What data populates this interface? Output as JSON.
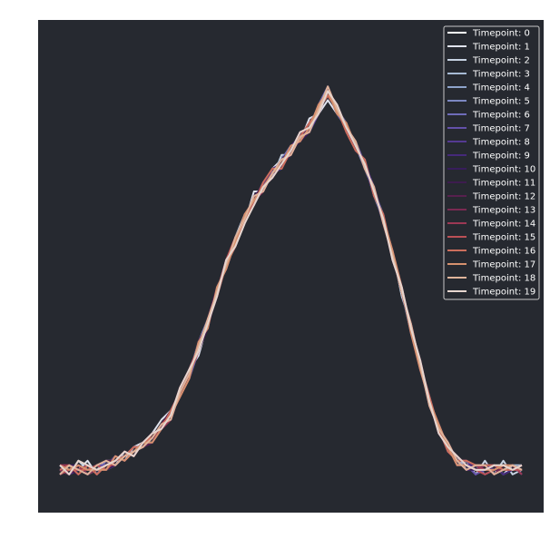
{
  "chart_data": {
    "type": "line",
    "title": "",
    "xlabel": "",
    "ylabel": "",
    "xlim": [
      0,
      100
    ],
    "ylim": [
      0,
      100
    ],
    "grid": false,
    "axis_ticks_visible": false,
    "background_color": "#262930",
    "legend_placement": "top-right",
    "x": [
      0,
      2,
      4,
      6,
      8,
      10,
      12,
      14,
      16,
      18,
      20,
      22,
      24,
      26,
      28,
      30,
      32,
      34,
      36,
      38,
      40,
      42,
      44,
      46,
      48,
      50,
      52,
      54,
      56,
      58,
      60,
      62,
      64,
      66,
      68,
      70,
      72,
      74,
      76,
      78,
      80,
      82,
      84,
      86,
      88,
      90,
      92,
      94,
      96,
      98,
      100
    ],
    "series": [
      {
        "name": "Timepoint: 0",
        "color": "#ffffff",
        "values": [
          6,
          5,
          6,
          4,
          5,
          6,
          7,
          8,
          9,
          10,
          12,
          14,
          17,
          22,
          26,
          32,
          38,
          44,
          50,
          55,
          60,
          64,
          67,
          70,
          72,
          75,
          78,
          80,
          84,
          88,
          84,
          80,
          76,
          72,
          66,
          60,
          52,
          44,
          36,
          28,
          20,
          14,
          10,
          7,
          6,
          5,
          6,
          5,
          6,
          5,
          6
        ]
      },
      {
        "name": "Timepoint: 1",
        "color": "#e0e3ee",
        "values": [
          4,
          6,
          5,
          7,
          4,
          6,
          8,
          7,
          10,
          11,
          13,
          16,
          18,
          21,
          27,
          30,
          37,
          43,
          51,
          54,
          59,
          66,
          66,
          71,
          73,
          76,
          77,
          82,
          83,
          86,
          83,
          81,
          75,
          73,
          65,
          61,
          51,
          45,
          35,
          29,
          19,
          15,
          9,
          8,
          5,
          6,
          5,
          6,
          4,
          6,
          5
        ]
      },
      {
        "name": "Timepoint: 2",
        "color": "#c6d2e2",
        "values": [
          5,
          4,
          7,
          5,
          6,
          5,
          6,
          9,
          8,
          11,
          11,
          15,
          16,
          23,
          25,
          33,
          36,
          45,
          49,
          56,
          61,
          63,
          68,
          69,
          74,
          74,
          79,
          79,
          85,
          87,
          85,
          79,
          77,
          71,
          67,
          59,
          53,
          43,
          37,
          27,
          21,
          13,
          11,
          6,
          7,
          4,
          7,
          4,
          7,
          4,
          5
        ]
      },
      {
        "name": "Timepoint: 3",
        "color": "#a7bbd5",
        "values": [
          6,
          5,
          5,
          6,
          5,
          7,
          7,
          8,
          9,
          10,
          12,
          14,
          17,
          22,
          26,
          31,
          38,
          44,
          50,
          54,
          60,
          64,
          67,
          70,
          72,
          75,
          78,
          80,
          83,
          88,
          84,
          80,
          76,
          72,
          66,
          60,
          52,
          44,
          36,
          28,
          20,
          14,
          10,
          7,
          6,
          5,
          5,
          6,
          5,
          6,
          6
        ]
      },
      {
        "name": "Timepoint: 4",
        "color": "#8ea3cb",
        "values": [
          5,
          6,
          4,
          6,
          5,
          6,
          7,
          8,
          10,
          10,
          13,
          14,
          18,
          22,
          27,
          32,
          37,
          44,
          51,
          55,
          59,
          64,
          68,
          70,
          71,
          75,
          79,
          80,
          83,
          88,
          83,
          80,
          77,
          72,
          65,
          60,
          53,
          44,
          35,
          28,
          21,
          14,
          9,
          7,
          7,
          5,
          5,
          6,
          5,
          5,
          5
        ]
      },
      {
        "name": "Timepoint: 5",
        "color": "#7d88c2",
        "values": [
          4,
          5,
          6,
          5,
          6,
          5,
          8,
          7,
          9,
          11,
          12,
          15,
          17,
          21,
          26,
          33,
          38,
          43,
          50,
          56,
          60,
          63,
          67,
          71,
          72,
          74,
          78,
          81,
          84,
          87,
          84,
          81,
          76,
          71,
          66,
          61,
          52,
          45,
          36,
          27,
          20,
          15,
          10,
          6,
          6,
          6,
          4,
          5,
          5,
          6,
          4
        ]
      },
      {
        "name": "Timepoint: 6",
        "color": "#6e6cb9",
        "values": [
          6,
          4,
          5,
          6,
          4,
          7,
          6,
          8,
          9,
          10,
          12,
          14,
          16,
          22,
          25,
          31,
          37,
          45,
          49,
          55,
          61,
          64,
          66,
          70,
          73,
          76,
          77,
          80,
          85,
          89,
          83,
          80,
          75,
          73,
          66,
          59,
          52,
          44,
          37,
          28,
          19,
          14,
          11,
          7,
          5,
          5,
          6,
          6,
          4,
          5,
          6
        ]
      },
      {
        "name": "Timepoint: 7",
        "color": "#6350a8",
        "values": [
          5,
          6,
          5,
          4,
          6,
          6,
          7,
          9,
          8,
          11,
          13,
          14,
          17,
          23,
          26,
          32,
          38,
          43,
          51,
          54,
          60,
          65,
          67,
          69,
          72,
          75,
          79,
          79,
          83,
          88,
          85,
          79,
          77,
          72,
          67,
          60,
          51,
          45,
          36,
          29,
          20,
          13,
          10,
          8,
          6,
          4,
          5,
          5,
          6,
          5,
          5
        ]
      },
      {
        "name": "Timepoint: 8",
        "color": "#553a92",
        "values": [
          4,
          5,
          6,
          5,
          5,
          5,
          7,
          8,
          10,
          10,
          11,
          14,
          18,
          22,
          27,
          31,
          37,
          44,
          50,
          56,
          59,
          64,
          67,
          71,
          72,
          74,
          78,
          81,
          84,
          87,
          84,
          80,
          76,
          72,
          65,
          61,
          52,
          44,
          36,
          28,
          21,
          14,
          9,
          7,
          7,
          5,
          6,
          5,
          5,
          6,
          4
        ]
      },
      {
        "name": "Timepoint: 9",
        "color": "#45297a",
        "values": [
          6,
          4,
          5,
          6,
          5,
          6,
          8,
          7,
          9,
          11,
          12,
          15,
          17,
          21,
          26,
          32,
          38,
          44,
          50,
          55,
          60,
          63,
          68,
          70,
          71,
          76,
          78,
          80,
          83,
          88,
          83,
          81,
          75,
          73,
          66,
          60,
          53,
          45,
          35,
          27,
          20,
          15,
          10,
          6,
          6,
          6,
          5,
          6,
          4,
          5,
          6
        ]
      },
      {
        "name": "Timepoint: 10",
        "color": "#381d5c",
        "values": [
          5,
          6,
          6,
          5,
          6,
          5,
          6,
          8,
          9,
          10,
          13,
          14,
          16,
          22,
          25,
          33,
          37,
          43,
          51,
          54,
          61,
          64,
          66,
          70,
          73,
          75,
          77,
          79,
          85,
          88,
          84,
          80,
          77,
          71,
          67,
          59,
          52,
          44,
          37,
          28,
          19,
          14,
          11,
          7,
          5,
          5,
          5,
          5,
          6,
          6,
          5
        ]
      },
      {
        "name": "Timepoint: 11",
        "color": "#3d1c4e",
        "values": [
          4,
          5,
          4,
          6,
          4,
          6,
          7,
          9,
          8,
          11,
          12,
          14,
          17,
          23,
          27,
          31,
          36,
          44,
          50,
          55,
          59,
          65,
          67,
          69,
          72,
          74,
          79,
          80,
          84,
          87,
          85,
          80,
          76,
          72,
          66,
          60,
          51,
          45,
          36,
          29,
          20,
          13,
          10,
          8,
          6,
          5,
          6,
          6,
          5,
          5,
          6
        ]
      },
      {
        "name": "Timepoint: 12",
        "color": "#57204e",
        "values": [
          6,
          6,
          5,
          5,
          6,
          7,
          7,
          8,
          10,
          10,
          11,
          15,
          18,
          22,
          26,
          32,
          38,
          45,
          49,
          56,
          60,
          64,
          68,
          71,
          71,
          75,
          78,
          81,
          83,
          89,
          84,
          79,
          75,
          73,
          65,
          61,
          52,
          44,
          36,
          28,
          21,
          14,
          9,
          7,
          7,
          6,
          5,
          5,
          5,
          6,
          5
        ]
      },
      {
        "name": "Timepoint: 13",
        "color": "#7a2a52",
        "values": [
          5,
          4,
          6,
          4,
          5,
          5,
          8,
          7,
          9,
          11,
          13,
          14,
          17,
          21,
          25,
          33,
          37,
          43,
          51,
          54,
          61,
          63,
          67,
          70,
          72,
          76,
          77,
          80,
          84,
          88,
          83,
          81,
          76,
          72,
          66,
          60,
          53,
          45,
          35,
          27,
          20,
          15,
          10,
          6,
          6,
          5,
          6,
          4,
          6,
          5,
          6
        ]
      },
      {
        "name": "Timepoint: 14",
        "color": "#9c3854",
        "values": [
          6,
          6,
          5,
          6,
          5,
          6,
          6,
          8,
          9,
          10,
          12,
          14,
          16,
          22,
          26,
          31,
          38,
          44,
          50,
          55,
          60,
          64,
          66,
          70,
          73,
          74,
          78,
          79,
          85,
          87,
          84,
          80,
          77,
          71,
          67,
          59,
          52,
          44,
          37,
          28,
          19,
          14,
          11,
          7,
          5,
          6,
          5,
          6,
          5,
          6,
          4
        ]
      },
      {
        "name": "Timepoint: 15",
        "color": "#bb5056",
        "values": [
          4,
          5,
          5,
          5,
          6,
          5,
          7,
          9,
          8,
          11,
          12,
          15,
          17,
          23,
          27,
          32,
          37,
          44,
          51,
          56,
          59,
          64,
          67,
          69,
          72,
          75,
          79,
          80,
          83,
          88,
          85,
          80,
          76,
          72,
          66,
          60,
          51,
          45,
          36,
          29,
          20,
          13,
          10,
          8,
          6,
          5,
          4,
          5,
          6,
          5,
          5
        ]
      },
      {
        "name": "Timepoint: 16",
        "color": "#cc6e5c",
        "values": [
          5,
          6,
          4,
          6,
          4,
          6,
          7,
          8,
          10,
          10,
          13,
          14,
          18,
          22,
          26,
          31,
          38,
          43,
          50,
          54,
          60,
          63,
          68,
          71,
          71,
          75,
          78,
          81,
          84,
          87,
          84,
          79,
          75,
          73,
          65,
          61,
          52,
          44,
          36,
          28,
          21,
          14,
          9,
          7,
          7,
          6,
          6,
          6,
          5,
          5,
          6
        ]
      },
      {
        "name": "Timepoint: 17",
        "color": "#d6916e",
        "values": [
          6,
          5,
          6,
          5,
          5,
          5,
          8,
          7,
          9,
          11,
          11,
          14,
          17,
          21,
          25,
          33,
          36,
          45,
          49,
          55,
          61,
          64,
          67,
          70,
          72,
          76,
          77,
          80,
          85,
          88,
          83,
          81,
          76,
          72,
          66,
          60,
          53,
          45,
          35,
          27,
          20,
          15,
          10,
          6,
          6,
          5,
          5,
          5,
          6,
          6,
          5
        ]
      },
      {
        "name": "Timepoint: 18",
        "color": "#dfb49b",
        "values": [
          4,
          6,
          5,
          4,
          6,
          7,
          6,
          8,
          9,
          10,
          12,
          15,
          16,
          22,
          26,
          32,
          38,
          44,
          50,
          56,
          60,
          65,
          66,
          70,
          73,
          74,
          78,
          79,
          84,
          89,
          84,
          80,
          77,
          71,
          67,
          59,
          52,
          44,
          37,
          28,
          19,
          14,
          11,
          7,
          5,
          6,
          6,
          4,
          5,
          6,
          5
        ]
      },
      {
        "name": "Timepoint: 19",
        "color": "#e6d6cf",
        "values": [
          6,
          4,
          7,
          6,
          5,
          6,
          7,
          9,
          8,
          11,
          13,
          14,
          17,
          23,
          27,
          31,
          37,
          43,
          51,
          54,
          59,
          63,
          67,
          69,
          72,
          75,
          79,
          80,
          83,
          88,
          85,
          80,
          76,
          72,
          66,
          60,
          51,
          45,
          36,
          29,
          20,
          13,
          10,
          8,
          6,
          5,
          5,
          6,
          6,
          5,
          6
        ]
      }
    ]
  }
}
